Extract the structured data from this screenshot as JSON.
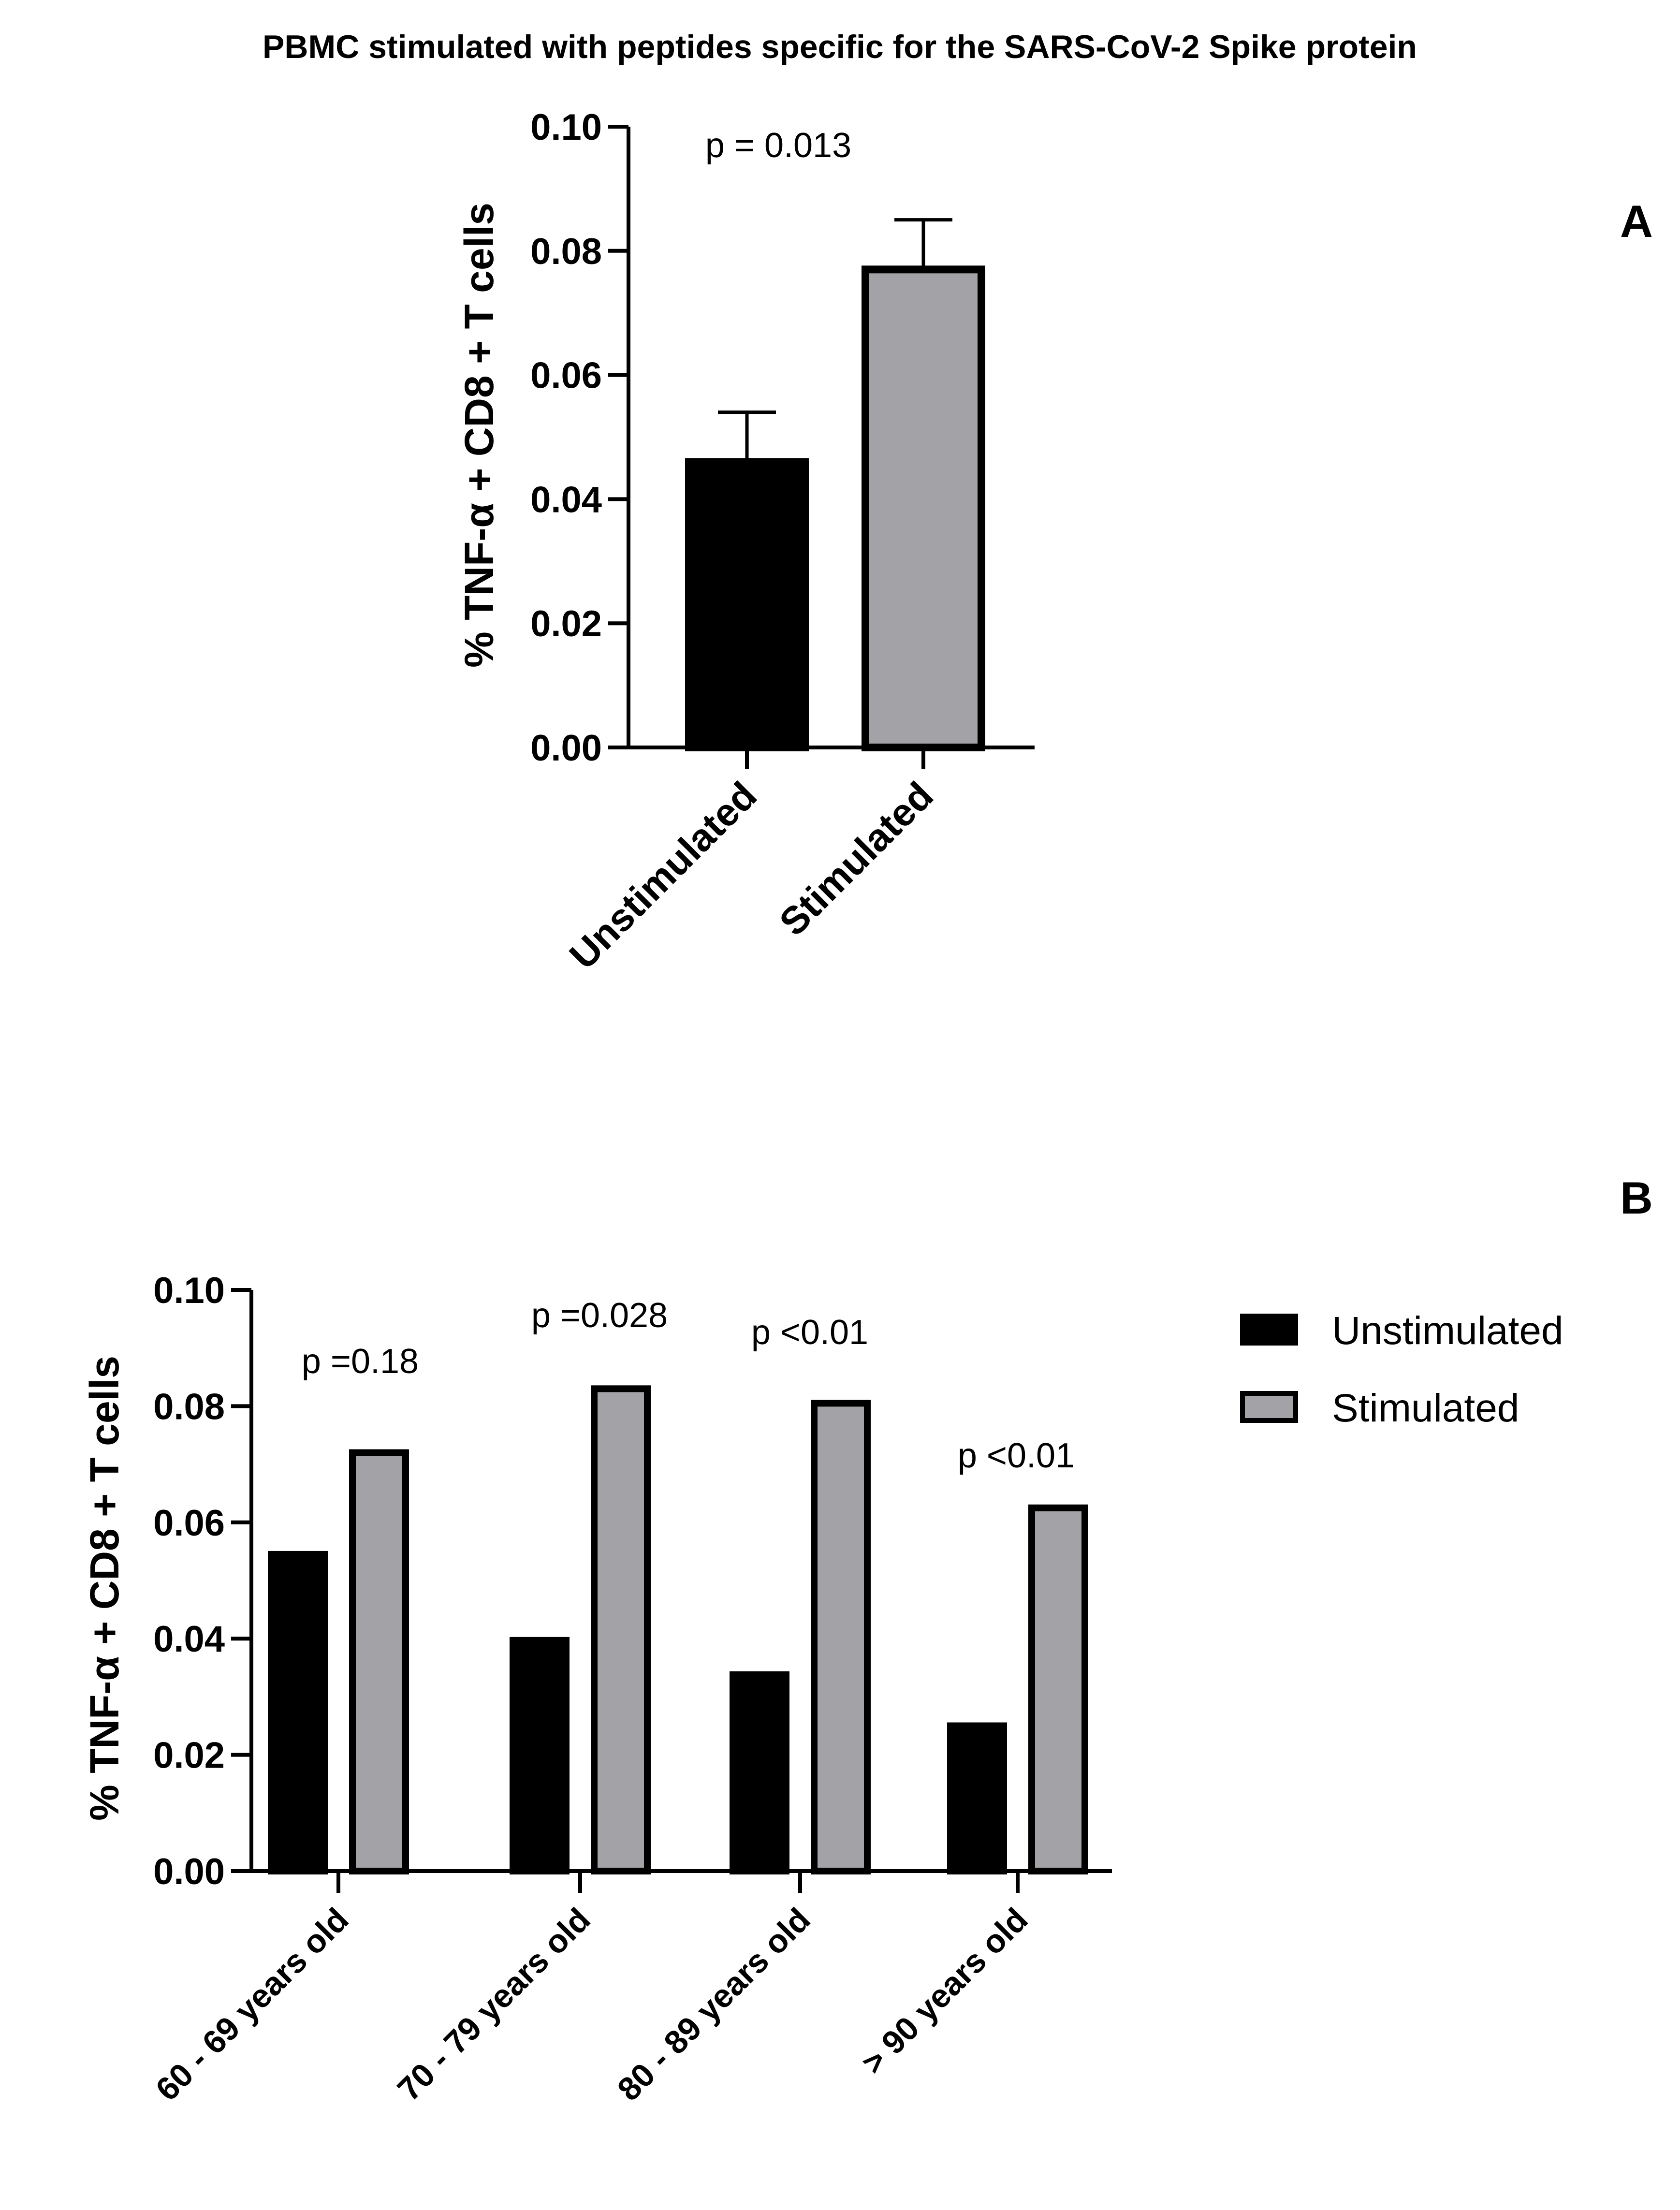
{
  "title": "PBMC stimulated with peptides specific for the SARS-CoV-2 Spike protein",
  "colors": {
    "unstimulated": "#000000",
    "stimulated": "#a3a3a7",
    "axis": "#000000"
  },
  "chart_data": [
    {
      "panel": "A",
      "type": "bar",
      "categories": [
        "Unstimulated",
        "Stimulated"
      ],
      "values": [
        0.046,
        0.077
      ],
      "error_upper": [
        0.054,
        0.085
      ],
      "ylabel": "% TNF-α + CD8 + T cells",
      "ylim": [
        0,
        0.1
      ],
      "yticks": [
        "0.00",
        "0.02",
        "0.04",
        "0.06",
        "0.08",
        "0.10"
      ],
      "annotations": [
        "p = 0.013"
      ]
    },
    {
      "panel": "B",
      "type": "bar",
      "categories": [
        "60 - 69 years old",
        "70 - 79 years old",
        "80 - 89 years old",
        "> 90 years old"
      ],
      "series": [
        {
          "name": "Unstimulated",
          "values": [
            0.0545,
            0.0397,
            0.0338,
            0.025
          ]
        },
        {
          "name": "Stimulated",
          "values": [
            0.072,
            0.083,
            0.0805,
            0.0625
          ]
        }
      ],
      "ylabel": "% TNF-α + CD8 + T cells",
      "ylim": [
        0,
        0.1
      ],
      "yticks": [
        "0.00",
        "0.02",
        "0.04",
        "0.06",
        "0.08",
        "0.10"
      ],
      "annotations": [
        "p =0.18",
        "p =0.028",
        "p <0.01",
        "p <0.01"
      ],
      "legend": [
        "Unstimulated",
        "Stimulated"
      ]
    }
  ]
}
